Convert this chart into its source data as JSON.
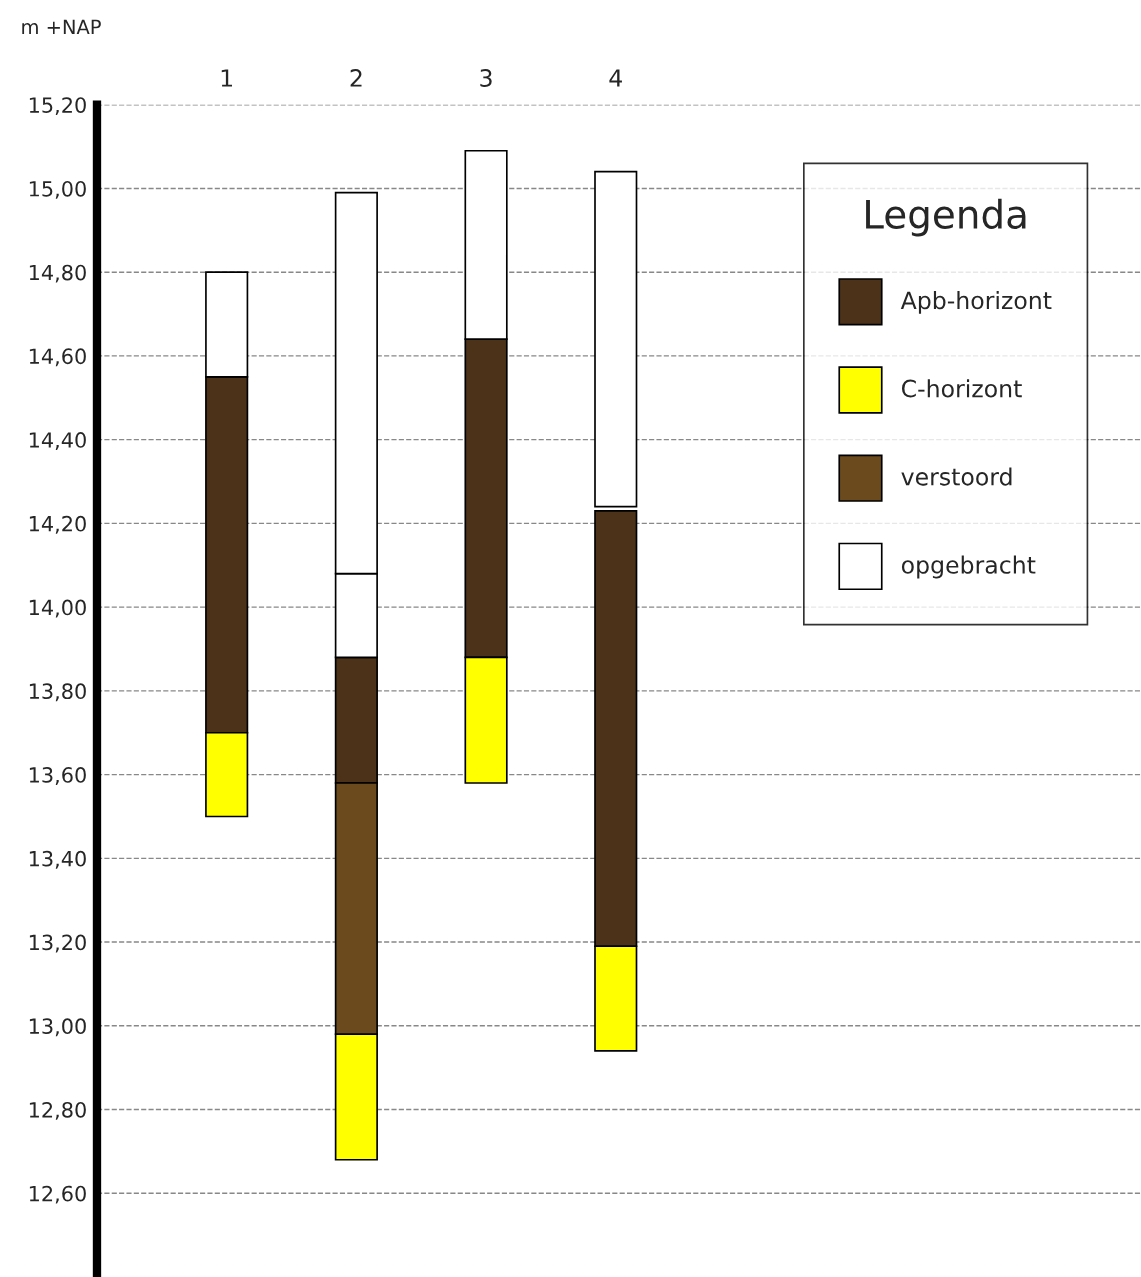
{
  "chart_data": {
    "type": "bar",
    "ylabel": "m +NAP",
    "legend_title": "Legenda",
    "legend": "top right",
    "grid": "y",
    "categories": [
      "1",
      "2",
      "3",
      "4"
    ],
    "series": [
      {
        "name": "Apb-horizont",
        "color": "#4b3219",
        "base": [
          13.7,
          13.58,
          13.88,
          13.19
        ],
        "values": [
          0.85,
          0.3,
          0.76,
          1.04
        ]
      },
      {
        "name": "C-horizont",
        "color": "#ffff00",
        "base": [
          13.5,
          12.68,
          13.58,
          12.94
        ],
        "values": [
          0.2,
          0.3,
          0.3,
          0.25
        ]
      },
      {
        "name": "verstoord",
        "color": "#6b4a1e",
        "base": [
          null,
          12.98,
          null,
          null
        ],
        "values": [
          null,
          0.6,
          null,
          null
        ]
      },
      {
        "name": "opgebracht",
        "color": "#ffffff",
        "base": [
          14.55,
          13.88,
          14.64,
          14.24
        ],
        "values": [
          0.25,
          0.2,
          0.45,
          0.8
        ]
      },
      {
        "color": "#ffffff",
        "base": [
          null,
          14.08,
          null,
          null
        ],
        "values": [
          null,
          0.91,
          null,
          null
        ]
      }
    ],
    "ylim": [
      12.4,
      15.2
    ],
    "yticks": [
      {
        "value": 12.6,
        "label": "12,60"
      },
      {
        "value": 12.8,
        "label": "12,80"
      },
      {
        "value": 13.0,
        "label": "13,00"
      },
      {
        "value": 13.2,
        "label": "13,20"
      },
      {
        "value": 13.4,
        "label": "13,40"
      },
      {
        "value": 13.6,
        "label": "13,60"
      },
      {
        "value": 13.8,
        "label": "13,80"
      },
      {
        "value": 14.0,
        "label": "14,00"
      },
      {
        "value": 14.2,
        "label": "14,20"
      },
      {
        "value": 14.4,
        "label": "14,40"
      },
      {
        "value": 14.6,
        "label": "14,60"
      },
      {
        "value": 14.8,
        "label": "14,80"
      },
      {
        "value": 15.0,
        "label": "15,00"
      },
      {
        "value": 15.2,
        "label": "15,20"
      }
    ]
  }
}
